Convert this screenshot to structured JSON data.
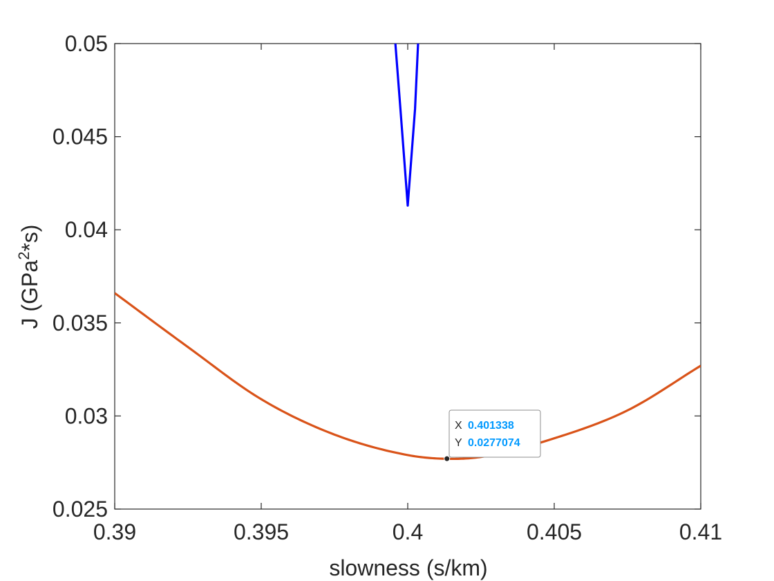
{
  "chart_data": {
    "type": "line",
    "xlabel": "slowness (s/km)",
    "ylabel_main": "J (GPa",
    "ylabel_sup": "2",
    "ylabel_tail": "*s)",
    "xlim": [
      0.39,
      0.41
    ],
    "ylim": [
      0.025,
      0.05
    ],
    "x_ticks": [
      0.39,
      0.395,
      0.4,
      0.405,
      0.41
    ],
    "x_tick_labels": [
      "0.39",
      "0.395",
      "0.4",
      "0.405",
      "0.41"
    ],
    "y_ticks": [
      0.025,
      0.03,
      0.035,
      0.04,
      0.045,
      0.05
    ],
    "y_tick_labels": [
      "0.025",
      "0.03",
      "0.035",
      "0.04",
      "0.045",
      "0.05"
    ],
    "grid": false,
    "series": [
      {
        "color": "#0000ff",
        "x": [
          0.3995,
          0.39975,
          0.4,
          0.40025,
          0.4004
        ],
        "y": [
          0.0516,
          0.0465,
          0.0413,
          0.0465,
          0.0516
        ]
      },
      {
        "color": "#d95319",
        "x": [
          0.39,
          0.3925,
          0.395,
          0.3975,
          0.4,
          0.4013,
          0.4025,
          0.405,
          0.4075,
          0.41
        ],
        "y": [
          0.0366,
          0.0337,
          0.0309,
          0.029,
          0.0279,
          0.0277,
          0.0278,
          0.0288,
          0.0303,
          0.0327
        ]
      }
    ],
    "datatip": {
      "x_label": "X",
      "x_value": "0.401338",
      "y_label": "Y",
      "y_value": "0.0277074",
      "point": [
        0.401338,
        0.0277074
      ],
      "value_color": "#0099ff"
    }
  }
}
